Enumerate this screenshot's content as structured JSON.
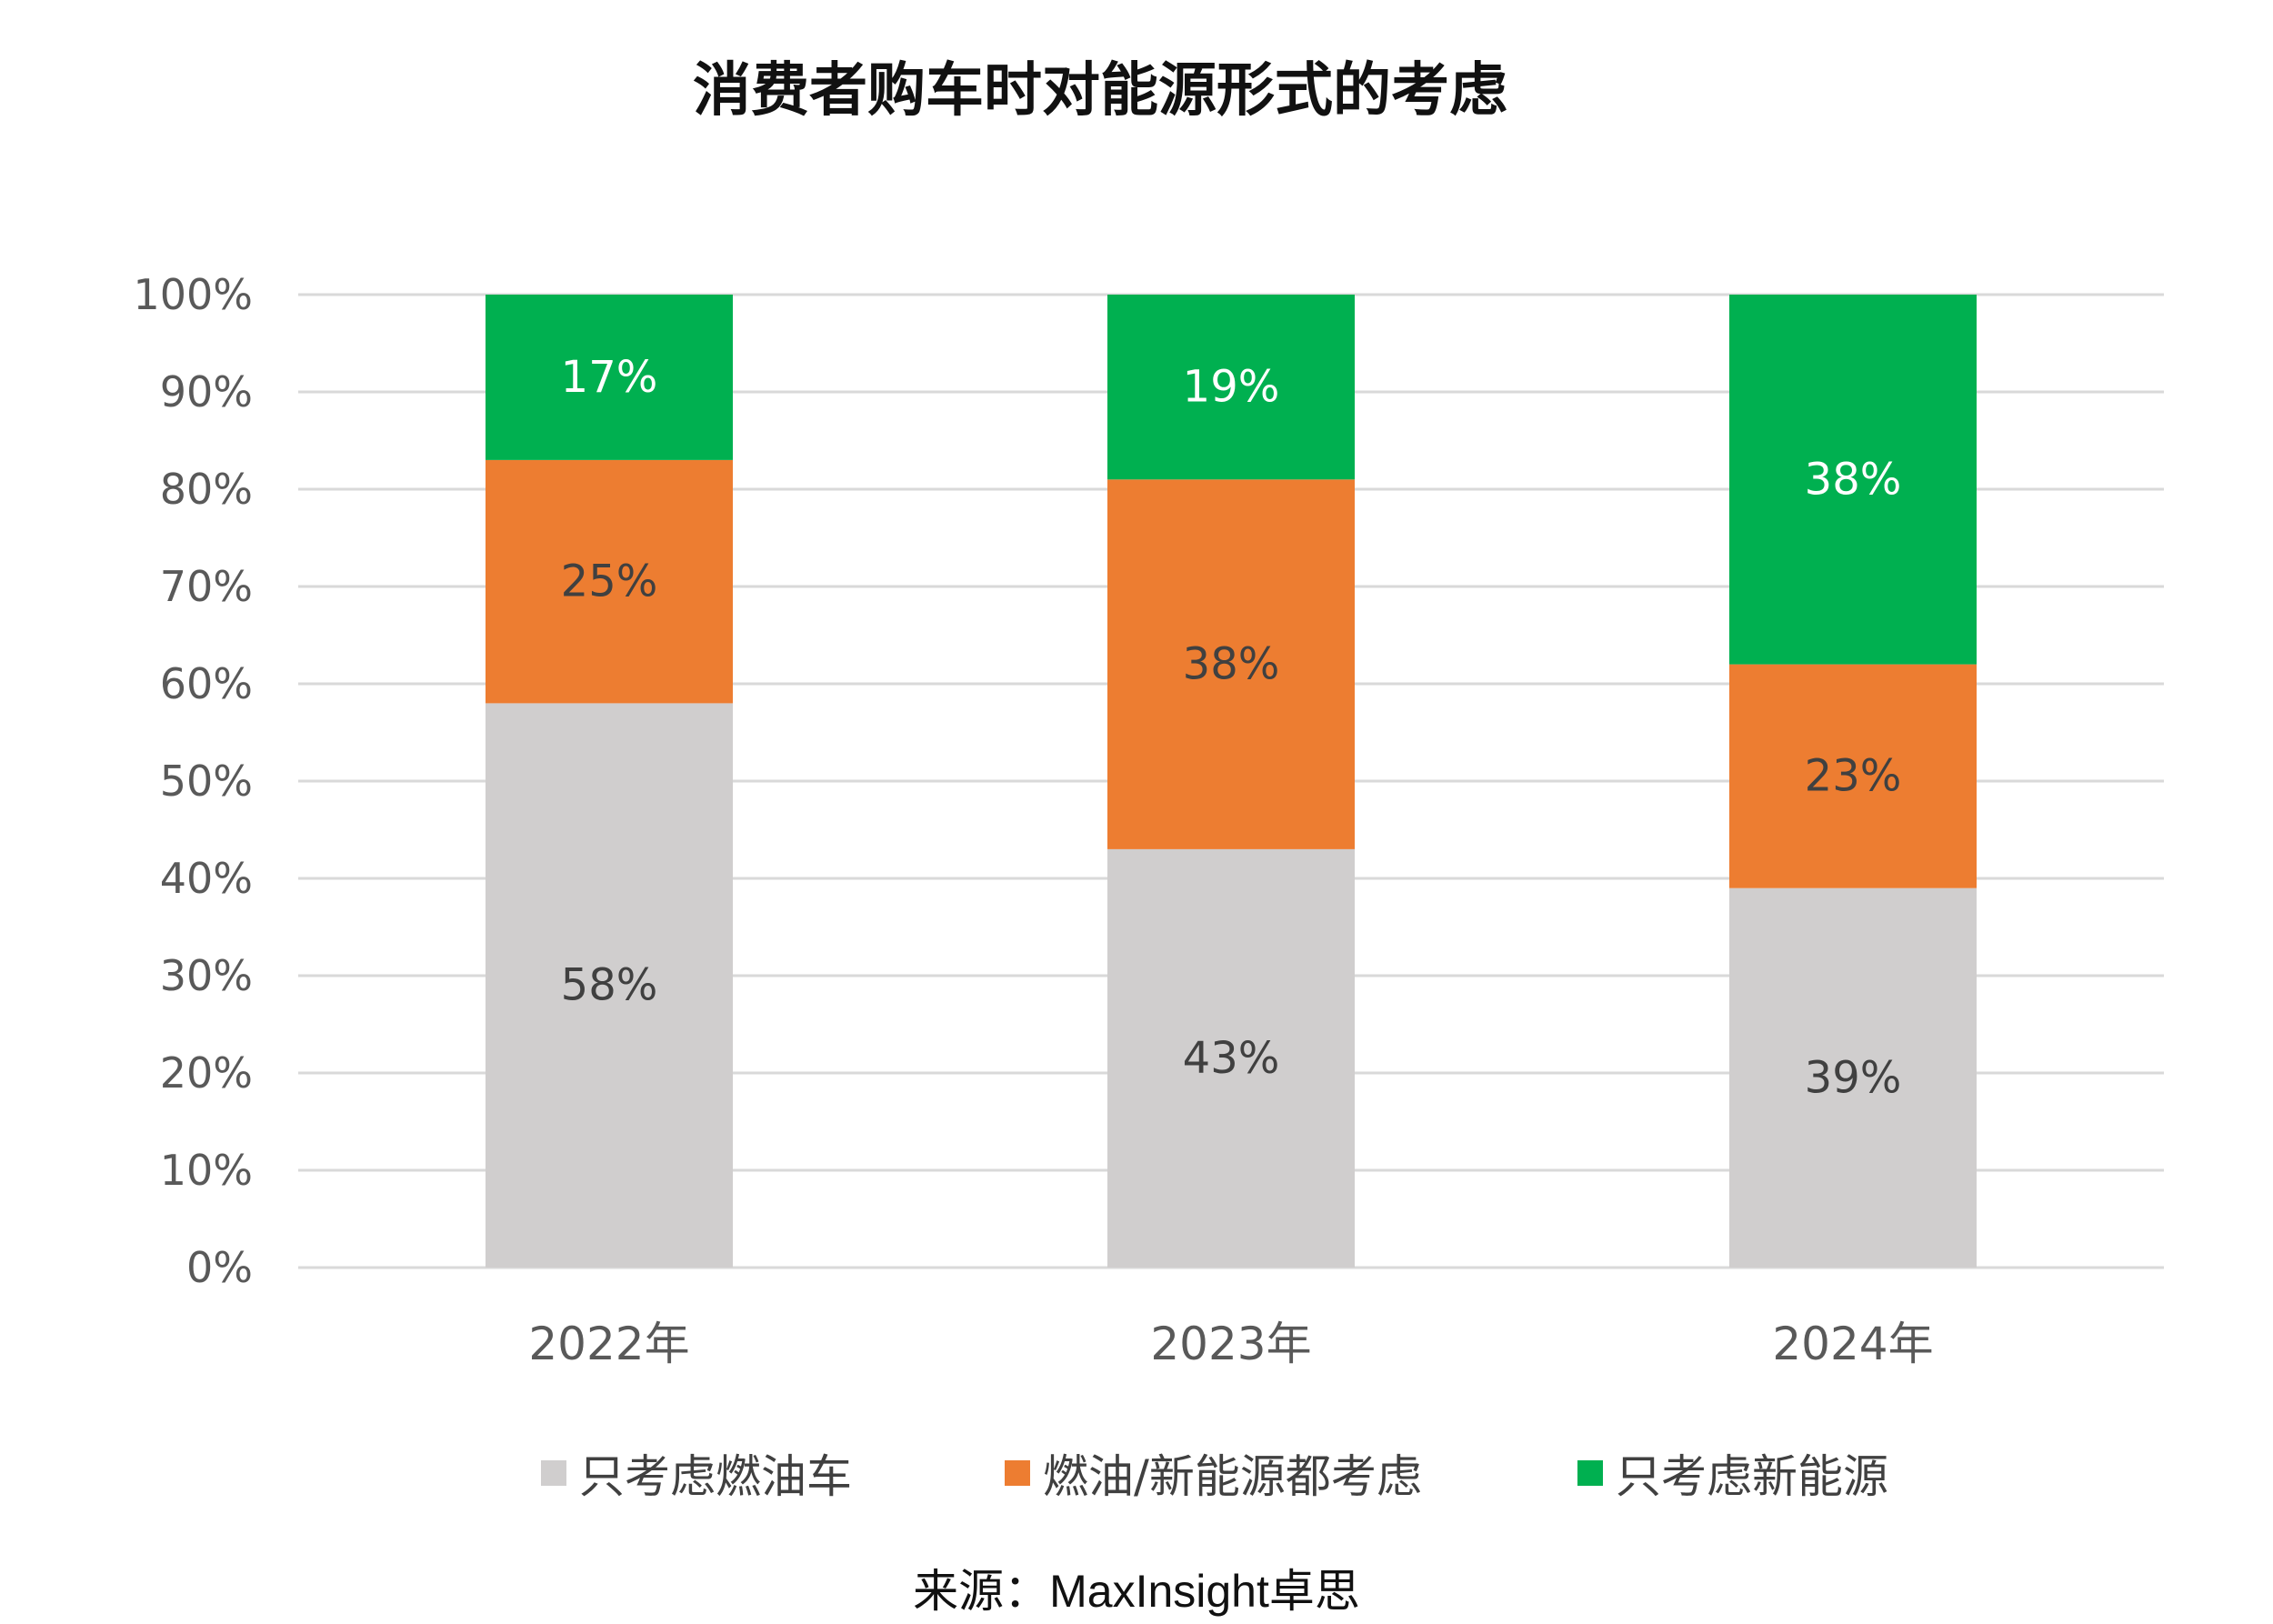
{
  "title": "消费者购车时对能源形式的考虑",
  "source": "来源：MaxInsight卓思",
  "chart_data": {
    "type": "bar",
    "stacked": true,
    "percent_stacked": true,
    "categories": [
      "2022年",
      "2023年",
      "2024年"
    ],
    "series": [
      {
        "name": "只考虑燃油车",
        "values": [
          58,
          43,
          39
        ],
        "color": "#d0cece",
        "label_color": "#404040"
      },
      {
        "name": "燃油/新能源都考虑",
        "values": [
          25,
          38,
          23
        ],
        "color": "#ed7d31",
        "label_color": "#404040"
      },
      {
        "name": "只考虑新能源",
        "values": [
          17,
          19,
          38
        ],
        "color": "#00b050",
        "label_color": "#ffffff"
      }
    ],
    "y_ticks": [
      "0%",
      "10%",
      "20%",
      "30%",
      "40%",
      "50%",
      "60%",
      "70%",
      "80%",
      "90%",
      "100%"
    ],
    "ylim": [
      0,
      100
    ],
    "grid": true,
    "legend_position": "bottom",
    "title": "消费者购车时对能源形式的考虑",
    "xlabel": "",
    "ylabel": ""
  }
}
